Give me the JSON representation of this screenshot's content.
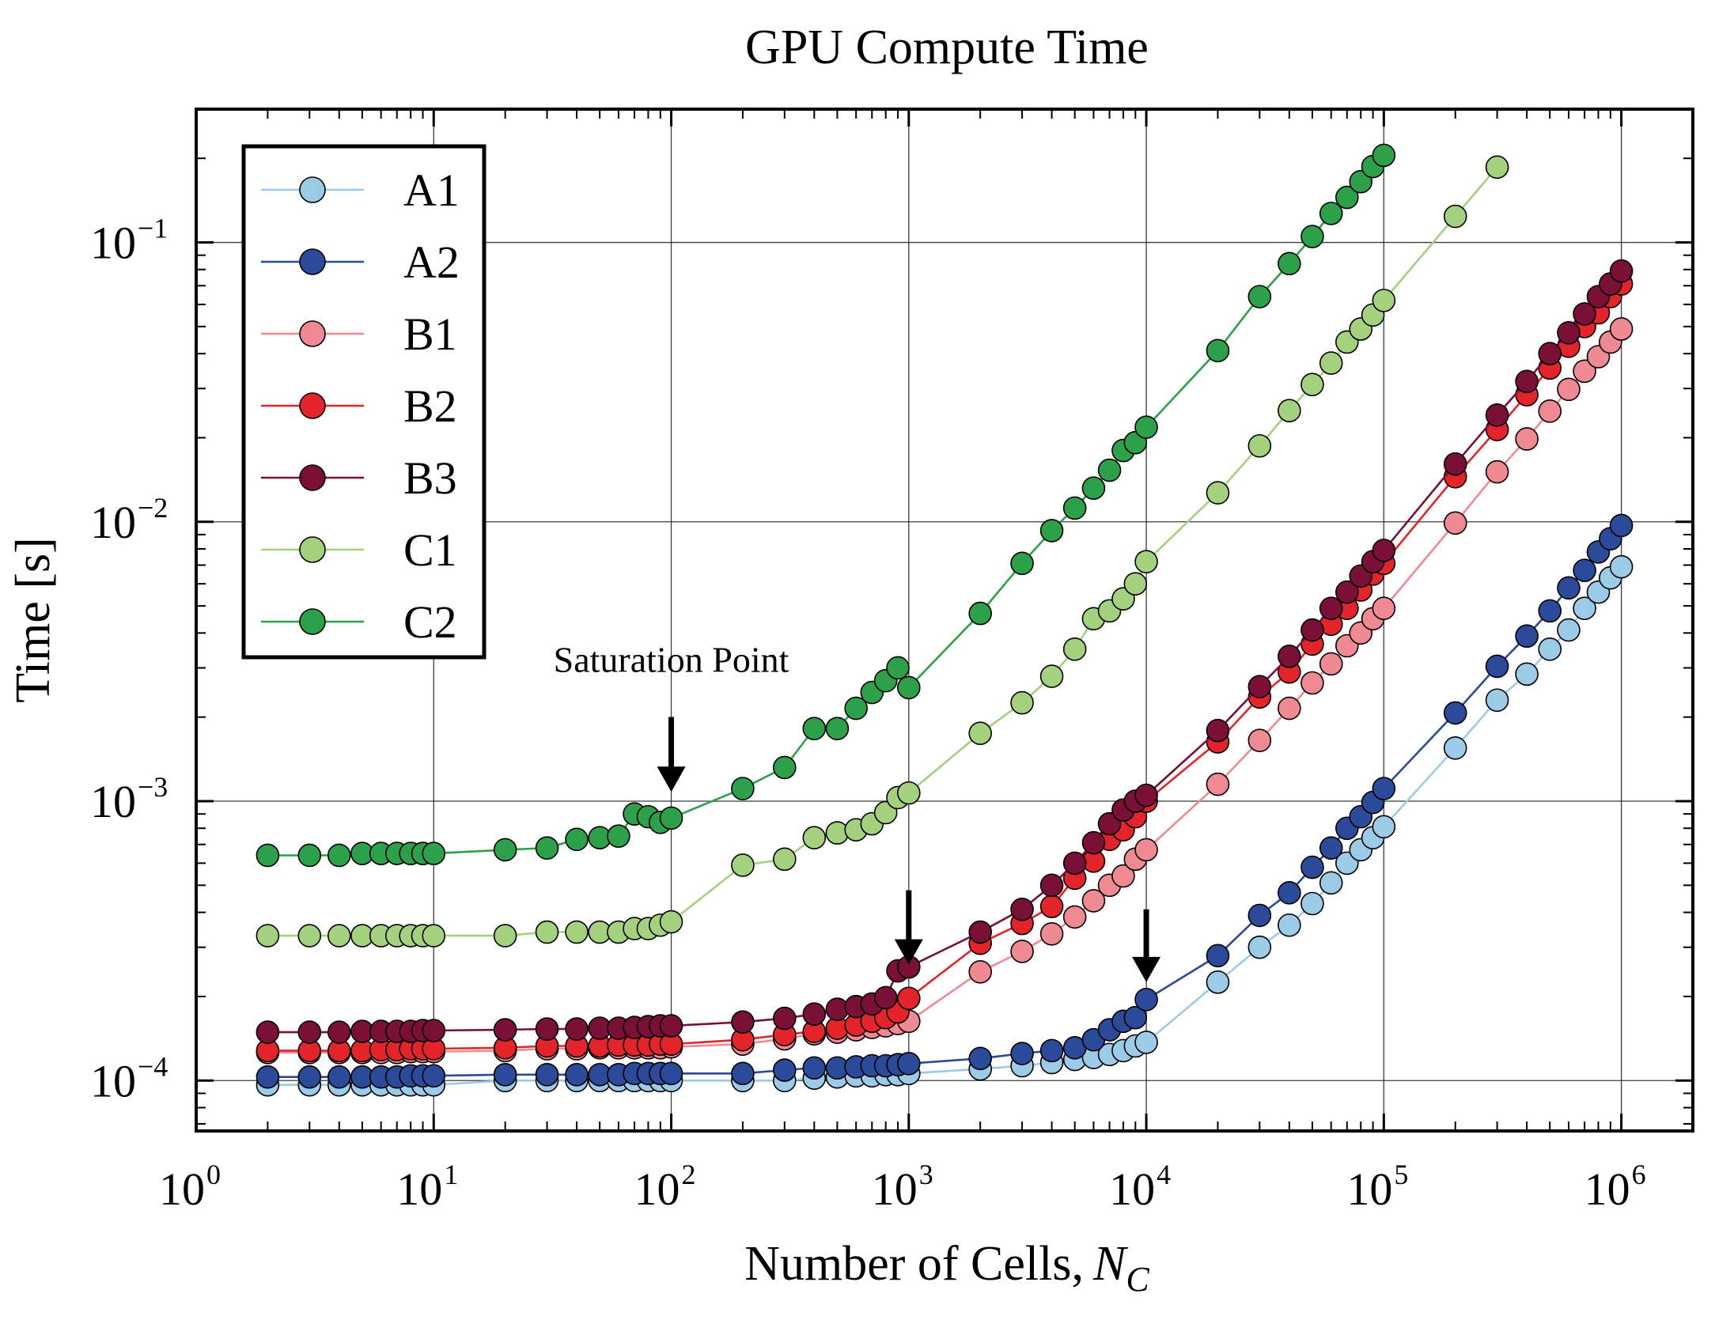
{
  "chart_data": {
    "type": "line",
    "title": "GPU Compute Time",
    "xlabel": "Number of Cells,",
    "xlabel_symbol": "N",
    "xlabel_subscript": "C",
    "ylabel": "Time [s]",
    "xscale": "log",
    "yscale": "log",
    "xlim": [
      1,
      2000000
    ],
    "ylim": [
      6.6e-05,
      0.3
    ],
    "grid": true,
    "legend_position": "upper-left",
    "x_ticks": [
      {
        "base": "10",
        "exp": "0",
        "value": 1
      },
      {
        "base": "10",
        "exp": "1",
        "value": 10
      },
      {
        "base": "10",
        "exp": "2",
        "value": 100
      },
      {
        "base": "10",
        "exp": "3",
        "value": 1000
      },
      {
        "base": "10",
        "exp": "4",
        "value": 10000
      },
      {
        "base": "10",
        "exp": "5",
        "value": 100000
      },
      {
        "base": "10",
        "exp": "6",
        "value": 1000000
      }
    ],
    "y_ticks": [
      {
        "base": "10",
        "exp": "−4",
        "value": 0.0001
      },
      {
        "base": "10",
        "exp": "−3",
        "value": 0.001
      },
      {
        "base": "10",
        "exp": "−2",
        "value": 0.01
      },
      {
        "base": "10",
        "exp": "−1",
        "value": 0.1
      }
    ],
    "annotations": [
      {
        "text": "Saturation Point",
        "x_text": 100,
        "y_text": 0.0029,
        "arrow_x": 100,
        "arrow_y_from": 0.002,
        "arrow_y_to": 0.00108
      },
      {
        "text": "",
        "arrow_x": 1000,
        "arrow_y_from": 0.00048,
        "arrow_y_to": 0.00026
      },
      {
        "text": "",
        "arrow_x": 10000,
        "arrow_y_from": 0.00041,
        "arrow_y_to": 0.000225
      }
    ],
    "series": [
      {
        "name": "A1",
        "color": "#9ccbe8",
        "x": [
          2,
          3,
          4,
          5,
          6,
          7,
          8,
          9,
          10,
          20,
          30,
          40,
          50,
          60,
          70,
          80,
          90,
          100,
          200,
          300,
          400,
          500,
          600,
          700,
          800,
          900,
          1000,
          2000,
          3000,
          4000,
          5000,
          6000,
          7000,
          8000,
          9000,
          10000,
          20000,
          30000,
          40000,
          50000,
          60000,
          70000,
          80000,
          90000,
          100000,
          200000,
          300000,
          400000,
          500000,
          600000,
          700000,
          800000,
          900000,
          1000000
        ],
        "values": [
          9.65e-05,
          9.65e-05,
          9.65e-05,
          9.65e-05,
          9.65e-05,
          9.65e-05,
          9.65e-05,
          9.65e-05,
          9.65e-05,
          0.0001,
          0.0001,
          0.0001,
          0.0001,
          0.0001,
          0.0001,
          0.0001,
          0.0001,
          0.0001,
          0.0001,
          0.0001,
          0.000102,
          0.000103,
          0.000104,
          0.000104,
          0.000105,
          0.000105,
          0.000106,
          0.00011,
          0.000113,
          0.000116,
          0.000119,
          0.000121,
          0.000124,
          0.000128,
          0.000133,
          0.000137,
          0.000225,
          0.0003,
          0.00036,
          0.00043,
          0.00051,
          0.0006,
          0.00067,
          0.00074,
          0.00081,
          0.00155,
          0.0023,
          0.00285,
          0.0035,
          0.0041,
          0.0049,
          0.0056,
          0.0063,
          0.0069
        ]
      },
      {
        "name": "A2",
        "color": "#2c4a9a",
        "x": [
          2,
          3,
          4,
          5,
          6,
          7,
          8,
          9,
          10,
          20,
          30,
          40,
          50,
          60,
          70,
          80,
          90,
          100,
          200,
          300,
          400,
          500,
          600,
          700,
          800,
          900,
          1000,
          2000,
          3000,
          4000,
          5000,
          6000,
          7000,
          8000,
          9000,
          10000,
          20000,
          30000,
          40000,
          50000,
          60000,
          70000,
          80000,
          90000,
          100000,
          200000,
          300000,
          400000,
          500000,
          600000,
          700000,
          800000,
          900000,
          1000000
        ],
        "values": [
          0.000103,
          0.000103,
          0.000103,
          0.000103,
          0.000103,
          0.000103,
          0.000104,
          0.000104,
          0.000104,
          0.000105,
          0.000105,
          0.000105,
          0.000105,
          0.000105,
          0.000106,
          0.000106,
          0.000106,
          0.000106,
          0.000106,
          0.000109,
          0.000111,
          0.000111,
          0.000112,
          0.000113,
          0.000113,
          0.000114,
          0.000115,
          0.00012,
          0.000125,
          0.000128,
          0.000131,
          0.00014,
          0.000152,
          0.000163,
          0.000168,
          0.000195,
          0.00028,
          0.00039,
          0.00047,
          0.00058,
          0.00068,
          0.0008,
          0.00088,
          0.00099,
          0.00111,
          0.00207,
          0.00304,
          0.0039,
          0.0048,
          0.0058,
          0.0067,
          0.0078,
          0.0087,
          0.0097
        ]
      },
      {
        "name": "B1",
        "color": "#f08a92",
        "x": [
          2,
          3,
          4,
          5,
          6,
          7,
          8,
          9,
          10,
          20,
          30,
          40,
          50,
          60,
          70,
          80,
          90,
          100,
          200,
          300,
          400,
          500,
          600,
          700,
          800,
          900,
          1000,
          2000,
          3000,
          4000,
          5000,
          6000,
          7000,
          8000,
          9000,
          10000,
          20000,
          30000,
          40000,
          50000,
          60000,
          70000,
          80000,
          90000,
          100000,
          200000,
          300000,
          400000,
          500000,
          600000,
          700000,
          800000,
          900000,
          1000000
        ],
        "values": [
          0.000126,
          0.000126,
          0.000126,
          0.000126,
          0.000126,
          0.000126,
          0.000127,
          0.000127,
          0.000127,
          0.000128,
          0.00013,
          0.00013,
          0.000131,
          0.000131,
          0.000131,
          0.000131,
          0.000131,
          0.000132,
          0.000135,
          0.000141,
          0.000147,
          0.000149,
          0.000152,
          0.000155,
          0.000157,
          0.00016,
          0.000163,
          0.000245,
          0.00029,
          0.000335,
          0.000385,
          0.00044,
          0.0005,
          0.00054,
          0.00062,
          0.00067,
          0.00115,
          0.00165,
          0.00215,
          0.00265,
          0.0031,
          0.0036,
          0.004,
          0.0045,
          0.0049,
          0.0099,
          0.0151,
          0.0198,
          0.0249,
          0.0298,
          0.0346,
          0.039,
          0.044,
          0.049
        ]
      },
      {
        "name": "B2",
        "color": "#e3242b",
        "x": [
          2,
          3,
          4,
          5,
          6,
          7,
          8,
          9,
          10,
          20,
          30,
          40,
          50,
          60,
          70,
          80,
          90,
          100,
          200,
          300,
          400,
          500,
          600,
          700,
          800,
          900,
          1000,
          2000,
          3000,
          4000,
          5000,
          6000,
          7000,
          8000,
          9000,
          10000,
          20000,
          30000,
          40000,
          50000,
          60000,
          70000,
          80000,
          90000,
          100000,
          200000,
          300000,
          400000,
          500000,
          600000,
          700000,
          800000,
          900000,
          1000000
        ],
        "values": [
          0.000128,
          0.000128,
          0.000128,
          0.000128,
          0.000129,
          0.000129,
          0.00013,
          0.00013,
          0.00013,
          0.000131,
          0.000133,
          0.000133,
          0.000133,
          0.000134,
          0.000134,
          0.000134,
          0.000135,
          0.000135,
          0.00014,
          0.000146,
          0.00015,
          0.000154,
          0.000158,
          0.000163,
          0.000168,
          0.000176,
          0.000197,
          0.00031,
          0.000365,
          0.00042,
          0.00053,
          0.00061,
          0.00073,
          0.00079,
          0.00088,
          0.001,
          0.00163,
          0.00236,
          0.0029,
          0.00365,
          0.0043,
          0.0049,
          0.0057,
          0.0065,
          0.0071,
          0.0145,
          0.0214,
          0.0285,
          0.0355,
          0.0425,
          0.05,
          0.056,
          0.064,
          0.071
        ]
      },
      {
        "name": "B3",
        "color": "#7a1038",
        "x": [
          2,
          3,
          4,
          5,
          6,
          7,
          8,
          9,
          10,
          20,
          30,
          40,
          50,
          60,
          70,
          80,
          90,
          100,
          200,
          300,
          400,
          500,
          600,
          700,
          800,
          900,
          1000,
          2000,
          3000,
          4000,
          5000,
          6000,
          7000,
          8000,
          9000,
          10000,
          20000,
          30000,
          40000,
          50000,
          60000,
          70000,
          80000,
          90000,
          100000,
          200000,
          300000,
          400000,
          500000,
          600000,
          700000,
          800000,
          900000,
          1000000
        ],
        "values": [
          0.000149,
          0.000149,
          0.000149,
          0.00015,
          0.00015,
          0.00015,
          0.00015,
          0.000151,
          0.000151,
          0.000152,
          0.000153,
          0.000153,
          0.000154,
          0.000154,
          0.000155,
          0.000156,
          0.000157,
          0.000157,
          0.000162,
          0.000167,
          0.000173,
          0.00018,
          0.000184,
          0.000188,
          0.000198,
          0.000247,
          0.000255,
          0.00034,
          0.00041,
          0.0005,
          0.0006,
          0.00071,
          0.00083,
          0.00093,
          0.001,
          0.00105,
          0.00179,
          0.00257,
          0.0033,
          0.0041,
          0.0049,
          0.0056,
          0.0064,
          0.0072,
          0.0079,
          0.0161,
          0.0241,
          0.0318,
          0.04,
          0.0475,
          0.0555,
          0.064,
          0.071,
          0.079
        ]
      },
      {
        "name": "C1",
        "color": "#a4d17e",
        "x": [
          2,
          3,
          4,
          5,
          6,
          7,
          8,
          9,
          10,
          20,
          30,
          40,
          50,
          60,
          70,
          80,
          90,
          100,
          200,
          300,
          400,
          500,
          600,
          700,
          800,
          900,
          1000,
          2000,
          3000,
          4000,
          5000,
          6000,
          7000,
          8000,
          9000,
          10000,
          20000,
          30000,
          40000,
          50000,
          60000,
          70000,
          80000,
          90000,
          100000,
          200000,
          300000
        ],
        "values": [
          0.00033,
          0.00033,
          0.00033,
          0.00033,
          0.00033,
          0.00033,
          0.00033,
          0.00033,
          0.00033,
          0.00033,
          0.00034,
          0.00034,
          0.00034,
          0.00034,
          0.00035,
          0.00035,
          0.00036,
          0.00037,
          0.00059,
          0.00062,
          0.00074,
          0.00077,
          0.00079,
          0.00083,
          0.00091,
          0.00103,
          0.00107,
          0.00175,
          0.00225,
          0.0028,
          0.0035,
          0.0045,
          0.0048,
          0.0053,
          0.006,
          0.0072,
          0.0127,
          0.0187,
          0.025,
          0.031,
          0.037,
          0.044,
          0.049,
          0.055,
          0.062,
          0.124,
          0.186
        ]
      },
      {
        "name": "C2",
        "color": "#2ca14a",
        "x": [
          2,
          3,
          4,
          5,
          6,
          7,
          8,
          9,
          10,
          20,
          30,
          40,
          50,
          60,
          70,
          80,
          90,
          100,
          200,
          300,
          400,
          500,
          600,
          700,
          800,
          900,
          1000,
          2000,
          3000,
          4000,
          5000,
          6000,
          7000,
          8000,
          9000,
          10000,
          20000,
          30000,
          40000,
          50000,
          60000,
          70000,
          80000,
          90000,
          100000
        ],
        "values": [
          0.00064,
          0.00064,
          0.00064,
          0.00065,
          0.00065,
          0.00065,
          0.00065,
          0.00065,
          0.00065,
          0.00067,
          0.00068,
          0.00073,
          0.00074,
          0.00075,
          0.0009,
          0.00088,
          0.00084,
          0.00087,
          0.00111,
          0.00132,
          0.00182,
          0.00182,
          0.00215,
          0.00245,
          0.0027,
          0.003,
          0.00255,
          0.0047,
          0.0071,
          0.0093,
          0.0112,
          0.0132,
          0.0153,
          0.018,
          0.0192,
          0.0218,
          0.041,
          0.064,
          0.084,
          0.105,
          0.127,
          0.145,
          0.165,
          0.187,
          0.205
        ]
      }
    ]
  }
}
